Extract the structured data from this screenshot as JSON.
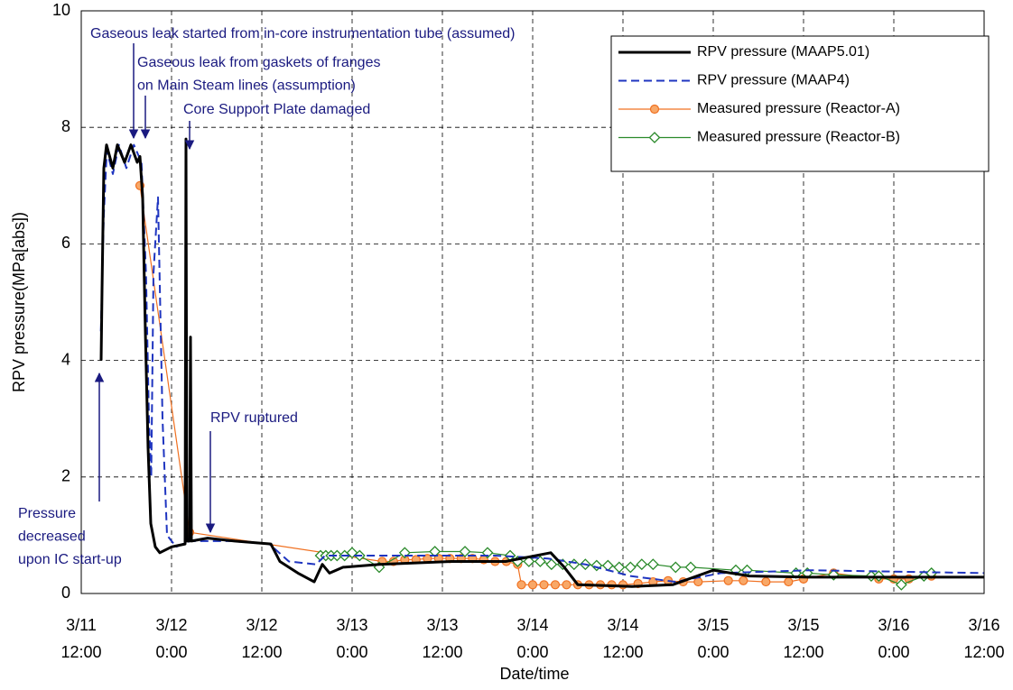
{
  "chart_data": {
    "type": "line",
    "xlabel": "Date/time",
    "ylabel": "RPV pressure(MPa[abs])",
    "xlim": [
      0,
      120
    ],
    "xticks": [
      {
        "value": 0,
        "label": "3/11\n12:00"
      },
      {
        "value": 12,
        "label": "3/12\n0:00"
      },
      {
        "value": 24,
        "label": "3/12\n12:00"
      },
      {
        "value": 36,
        "label": "3/13\n0:00"
      },
      {
        "value": 48,
        "label": "3/13\n12:00"
      },
      {
        "value": 60,
        "label": "3/14\n0:00"
      },
      {
        "value": 72,
        "label": "3/14\n12:00"
      },
      {
        "value": 84,
        "label": "3/15\n0:00"
      },
      {
        "value": 96,
        "label": "3/15\n12:00"
      },
      {
        "value": 108,
        "label": "3/16\n0:00"
      },
      {
        "value": 120,
        "label": "3/16\n12:00"
      }
    ],
    "ylim": [
      0,
      10
    ],
    "yticks": [
      0,
      2,
      4,
      6,
      8,
      10
    ],
    "grid": true,
    "legend": "upper right",
    "series": [
      {
        "name": "RPV pressure (MAAP5.01)",
        "color": "#000000",
        "style": "solid",
        "marker": "none",
        "x": [
          2.64,
          2.76,
          3.0,
          3.36,
          4.2,
          4.8,
          5.76,
          6.6,
          7.44,
          7.8,
          8.16,
          8.52,
          8.88,
          9.24,
          9.84,
          10.44,
          12,
          13.8,
          13.92,
          14.04,
          14.4,
          14.52,
          14.64,
          16.8,
          20.4,
          25.2,
          26.4,
          28.8,
          30.96,
          32.04,
          33,
          34.8,
          39.6,
          49.2,
          56.4,
          62.4,
          64.2,
          66,
          73.2,
          78.6,
          84,
          88.8,
          97.2,
          109.2,
          120
        ],
        "values": [
          4.0,
          5.2,
          7.3,
          7.7,
          7.3,
          7.7,
          7.4,
          7.7,
          7.4,
          7.5,
          6.8,
          4.5,
          2.5,
          1.2,
          0.8,
          0.7,
          0.8,
          0.85,
          7.8,
          0.9,
          0.9,
          4.4,
          0.9,
          0.95,
          0.9,
          0.85,
          0.55,
          0.35,
          0.2,
          0.5,
          0.35,
          0.45,
          0.5,
          0.55,
          0.55,
          0.7,
          0.45,
          0.15,
          0.12,
          0.15,
          0.4,
          0.3,
          0.28,
          0.28,
          0.28
        ]
      },
      {
        "name": "RPV pressure (MAAP4)",
        "color": "#1f35c0",
        "style": "dashed",
        "marker": "none",
        "x": [
          2.6,
          3.0,
          3.4,
          4.2,
          5,
          6,
          7,
          8,
          8.6,
          9.0,
          9.3,
          9.6,
          10.2,
          10.8,
          11.4,
          12.6,
          14.4,
          20,
          25,
          27.6,
          31.2,
          32.4,
          40,
          55,
          62,
          67,
          73,
          79,
          85,
          97,
          120
        ],
        "values": [
          4.5,
          6.5,
          7.6,
          7.2,
          7.7,
          7.3,
          7.7,
          7.4,
          5.5,
          3,
          2,
          5.5,
          6.8,
          3,
          1.0,
          0.8,
          0.9,
          0.9,
          0.85,
          0.55,
          0.5,
          0.65,
          0.65,
          0.65,
          0.6,
          0.5,
          0.3,
          0.2,
          0.35,
          0.4,
          0.35
        ]
      },
      {
        "name": "Measured pressure (Reactor-A)",
        "color": "#f07020",
        "style": "solid",
        "marker": "circle",
        "x": [
          7.8,
          14.4,
          40,
          41.5,
          43,
          44.5,
          46,
          47.5,
          49,
          50.5,
          52,
          53.5,
          55,
          56.5,
          58,
          58.5,
          60,
          61.5,
          63,
          64.5,
          66,
          67.5,
          69,
          70.5,
          72,
          74,
          76,
          78,
          80,
          82,
          86,
          88,
          91,
          94,
          96,
          100,
          106,
          108,
          110,
          113
        ],
        "values": [
          7.0,
          1.05,
          0.55,
          0.55,
          0.58,
          0.58,
          0.6,
          0.6,
          0.6,
          0.6,
          0.6,
          0.58,
          0.55,
          0.55,
          0.5,
          0.15,
          0.15,
          0.15,
          0.15,
          0.15,
          0.15,
          0.15,
          0.15,
          0.15,
          0.15,
          0.17,
          0.2,
          0.22,
          0.2,
          0.2,
          0.22,
          0.22,
          0.2,
          0.2,
          0.25,
          0.35,
          0.25,
          0.25,
          0.25,
          0.3
        ]
      },
      {
        "name": "Measured pressure (Reactor-B)",
        "color": "#2a8a2a",
        "style": "solid",
        "marker": "diamond",
        "x": [
          31.8,
          32.5,
          33.2,
          34,
          35,
          36,
          37,
          39.6,
          43,
          47,
          51,
          54,
          57,
          58,
          59.5,
          61,
          62.5,
          64,
          65.5,
          67,
          68.5,
          70,
          71.5,
          73,
          74.5,
          76,
          79,
          81,
          87,
          88.5,
          95,
          96.5,
          100,
          105,
          106,
          109,
          112,
          113
        ],
        "values": [
          0.65,
          0.65,
          0.65,
          0.65,
          0.65,
          0.7,
          0.65,
          0.45,
          0.7,
          0.72,
          0.72,
          0.7,
          0.65,
          0.55,
          0.55,
          0.55,
          0.5,
          0.5,
          0.5,
          0.5,
          0.48,
          0.48,
          0.45,
          0.45,
          0.5,
          0.5,
          0.45,
          0.45,
          0.4,
          0.4,
          0.35,
          0.35,
          0.32,
          0.3,
          0.3,
          0.15,
          0.3,
          0.35
        ]
      }
    ],
    "annotations": [
      {
        "lines": [
          "Gaseous leak started from in-core instrumentation tube (assumed)"
        ]
      },
      {
        "lines": [
          "Gaseous leak from gaskets of  franges",
          "on Main Steam lines (assumption)"
        ]
      },
      {
        "lines": [
          "Core Support Plate damaged"
        ]
      },
      {
        "lines": [
          "RPV ruptured"
        ]
      },
      {
        "lines": [
          "Pressure",
          "decreased",
          "upon IC start-up"
        ]
      }
    ]
  }
}
